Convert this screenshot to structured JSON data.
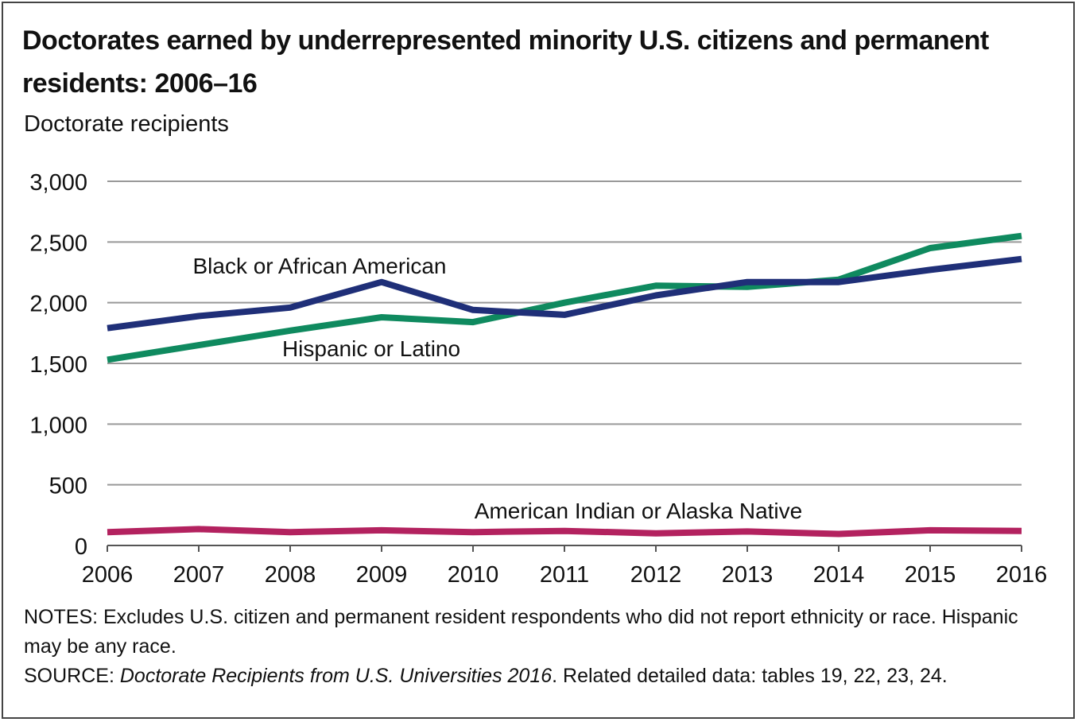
{
  "title": "Doctorates earned by underrepresented minority U.S. citizens and permanent residents: 2006–16",
  "colors": {
    "black_aa": "#1f2f78",
    "hispanic": "#0f8a5f",
    "aian": "#b3225f",
    "grid": "#999999",
    "axis": "#555555"
  },
  "chart_data": {
    "type": "line",
    "title": "Doctorates earned by underrepresented minority U.S. citizens and permanent residents: 2006–16",
    "ylabel": "Doctorate recipients",
    "xlabel": "",
    "ylim": [
      0,
      3000
    ],
    "yticks": [
      "0",
      "500",
      "1,000",
      "1,500",
      "2,000",
      "2,500",
      "3,000"
    ],
    "ytick_values": [
      0,
      500,
      1000,
      1500,
      2000,
      2500,
      3000
    ],
    "categories": [
      "2006",
      "2007",
      "2008",
      "2009",
      "2010",
      "2011",
      "2012",
      "2013",
      "2014",
      "2015",
      "2016"
    ],
    "grid": true,
    "series": [
      {
        "name": "Black or African American",
        "color": "#1f2f78",
        "values": [
          1790,
          1890,
          1960,
          2170,
          1940,
          1900,
          2060,
          2170,
          2170,
          2270,
          2360
        ]
      },
      {
        "name": "Hispanic or Latino",
        "color": "#0f8a5f",
        "values": [
          1530,
          1650,
          1770,
          1880,
          1840,
          2000,
          2140,
          2130,
          2190,
          2450,
          2550
        ]
      },
      {
        "name": "American Indian or Alaska Native",
        "color": "#b3225f",
        "values": [
          110,
          135,
          110,
          125,
          110,
          120,
          100,
          115,
          95,
          125,
          120
        ]
      }
    ]
  },
  "notes": {
    "notes_line": "NOTES: Excludes U.S. citizen and permanent resident respondents who did not report ethnicity or race. Hispanic may be any race.",
    "source_prefix": "SOURCE: ",
    "source_title": "Doctorate Recipients from U.S. Universities 2016",
    "source_suffix": ". Related detailed data: tables 19, 22, 23, 24."
  }
}
